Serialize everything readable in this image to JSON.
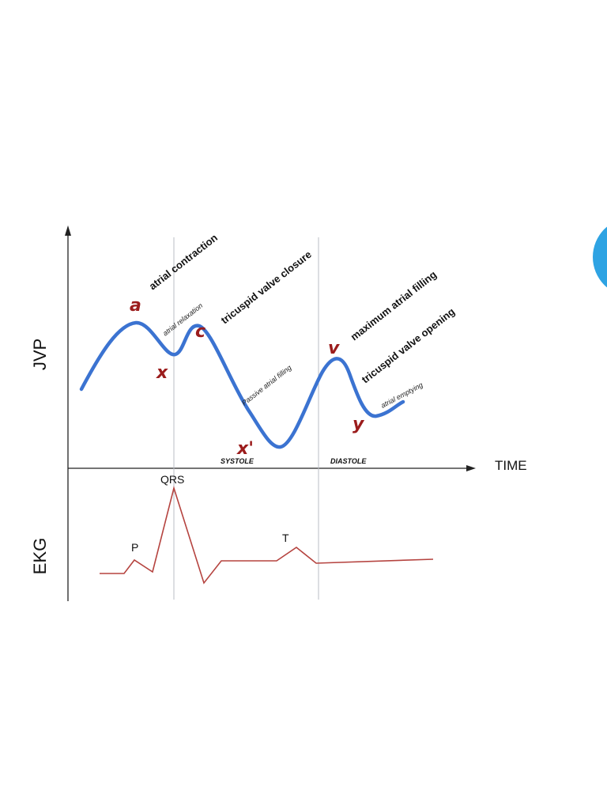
{
  "axes": {
    "jvp_label": "JVP",
    "ekg_label": "EKG",
    "time_label": "TIME"
  },
  "jvp_points": {
    "a": "a",
    "x": "x",
    "c": "c",
    "x_prime": "x'",
    "v": "v",
    "y": "y"
  },
  "jvp_events": {
    "atrial_contraction": "atrial contraction",
    "atrial_relaxation": "atrial relaxation",
    "tricuspid_closure": "tricuspid valve closure",
    "passive_filling": "Passive atrial filling",
    "maximum_filling": "maximum atrial filling",
    "tricuspid_opening": "tricuspid valve opening",
    "atrial_emptying": "atrial emptying"
  },
  "phases": {
    "systole": "SYSTOLE",
    "diastole": "DIASTOLE"
  },
  "ekg_waves": {
    "p": "P",
    "qrs": "QRS",
    "t": "T"
  },
  "colors": {
    "jvp_curve": "#3b73d1",
    "ekg_trace": "#b5433f",
    "wave_letter": "#9b1c1c",
    "decor_circle": "#2ea3e3"
  }
}
